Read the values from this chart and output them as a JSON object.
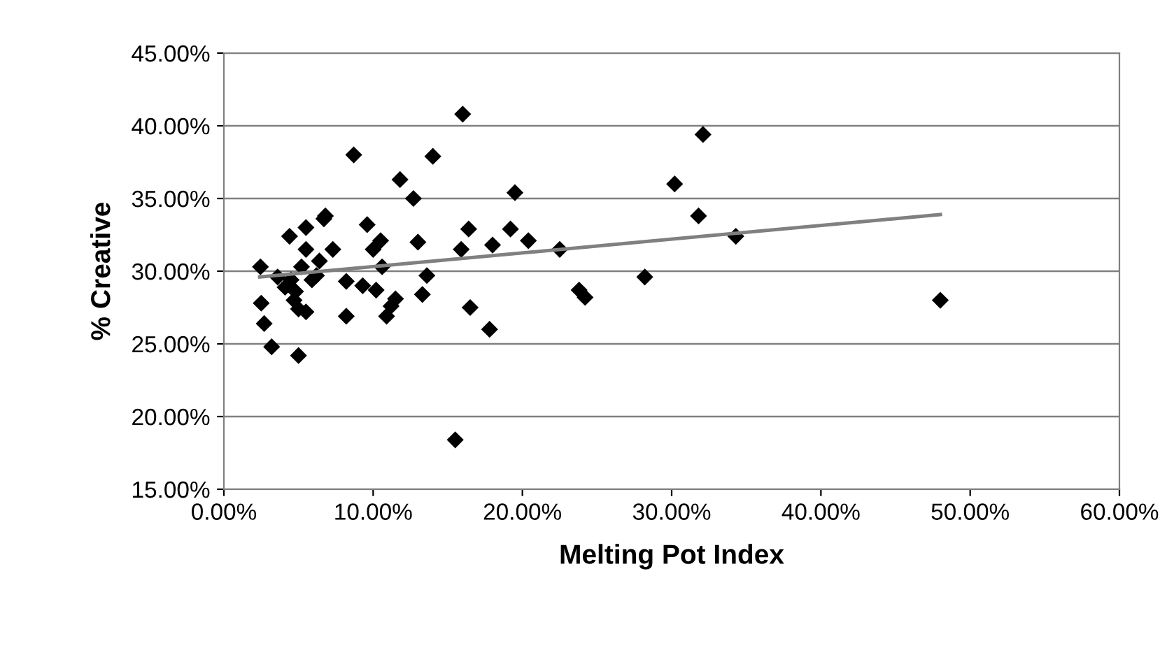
{
  "chart_data": {
    "type": "scatter",
    "xlabel": "Melting Pot Index",
    "ylabel": "% Creative",
    "xlim": [
      0,
      60
    ],
    "xticks": [
      {
        "value": 0,
        "label": "0.00%"
      },
      {
        "value": 10,
        "label": "10.00%"
      },
      {
        "value": 20,
        "label": "20.00%"
      },
      {
        "value": 30,
        "label": "30.00%"
      },
      {
        "value": 40,
        "label": "40.00%"
      },
      {
        "value": 50,
        "label": "50.00%"
      },
      {
        "value": 60,
        "label": "60.00%"
      }
    ],
    "ylim": [
      15,
      45
    ],
    "yticks": [
      {
        "value": 15,
        "label": "15.00%"
      },
      {
        "value": 20,
        "label": "20.00%"
      },
      {
        "value": 25,
        "label": "25.00%"
      },
      {
        "value": 30,
        "label": "30.00%"
      },
      {
        "value": 35,
        "label": "35.00%"
      },
      {
        "value": 40,
        "label": "40.00%"
      },
      {
        "value": 45,
        "label": "45.00%"
      }
    ],
    "grid": "y",
    "series": [
      {
        "color": "#000000",
        "marker": "diamond",
        "x": [
          2.45,
          2.5,
          2.7,
          3.2,
          3.6,
          4.4,
          4.1,
          4.5,
          4.7,
          5.0,
          5.5,
          5.5,
          5.2,
          5.0,
          5.5,
          5.9,
          6.2,
          4.8,
          6.4,
          6.7,
          6.8,
          7.3,
          8.2,
          8.2,
          8.7,
          9.3,
          9.6,
          10.0,
          10.5,
          10.2,
          10.6,
          10.9,
          11.2,
          11.5,
          11.8,
          12.7,
          13.0,
          13.3,
          13.6,
          14.0,
          16.0,
          15.5,
          15.9,
          16.4,
          16.5,
          17.8,
          18.0,
          19.2,
          19.5,
          20.4,
          22.5,
          23.8,
          24.2,
          28.2,
          30.2,
          31.8,
          32.1,
          34.3,
          48.0
        ],
        "values": [
          30.3,
          27.8,
          26.4,
          24.8,
          29.6,
          32.4,
          28.9,
          29.4,
          28.0,
          24.2,
          33.0,
          31.5,
          30.3,
          27.4,
          27.2,
          29.4,
          29.7,
          28.6,
          30.7,
          33.6,
          33.8,
          31.5,
          26.9,
          29.3,
          38.0,
          29.0,
          33.2,
          31.5,
          32.1,
          28.7,
          30.3,
          26.9,
          27.6,
          28.1,
          36.3,
          35.0,
          32.0,
          28.4,
          29.7,
          37.9,
          40.8,
          18.4,
          31.5,
          32.9,
          27.5,
          26.0,
          31.8,
          32.9,
          35.4,
          32.1,
          31.5,
          28.7,
          28.2,
          29.6,
          36.0,
          33.8,
          39.4,
          32.4,
          28.0
        ]
      },
      {
        "type": "line",
        "marker": "none",
        "color": "#808080",
        "x": [
          2.4,
          48.0
        ],
        "values": [
          29.6,
          33.9
        ]
      }
    ]
  }
}
